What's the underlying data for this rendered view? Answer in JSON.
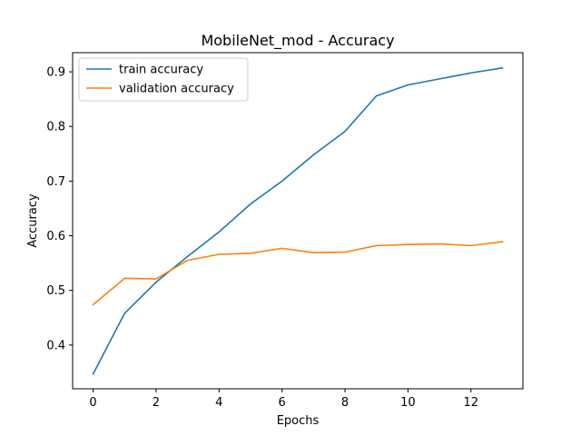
{
  "chart_data": {
    "type": "line",
    "title": "MobileNet_mod - Accuracy",
    "xlabel": "Epochs",
    "ylabel": "Accuracy",
    "xlim": [
      -0.65,
      13.65
    ],
    "ylim": [
      0.32,
      0.935
    ],
    "xticks": [
      0,
      2,
      4,
      6,
      8,
      10,
      12
    ],
    "yticks": [
      0.4,
      0.5,
      0.6,
      0.7,
      0.8,
      0.9
    ],
    "ytick_labels": [
      "0.4",
      "0.5",
      "0.6",
      "0.7",
      "0.8",
      "0.9"
    ],
    "grid": false,
    "legend_position": "top-left",
    "x": [
      0,
      1,
      2,
      3,
      4,
      5,
      6,
      7,
      8,
      9,
      10,
      11,
      12,
      13
    ],
    "series": [
      {
        "name": "train accuracy",
        "color": "#1f77b4",
        "values": [
          0.347,
          0.458,
          0.515,
          0.562,
          0.607,
          0.658,
          0.7,
          0.748,
          0.791,
          0.856,
          0.876,
          0.887,
          0.898,
          0.907
        ]
      },
      {
        "name": "validation accuracy",
        "color": "#ff7f0e",
        "values": [
          0.474,
          0.522,
          0.521,
          0.555,
          0.566,
          0.568,
          0.577,
          0.569,
          0.57,
          0.582,
          0.584,
          0.585,
          0.582,
          0.589
        ]
      }
    ]
  }
}
